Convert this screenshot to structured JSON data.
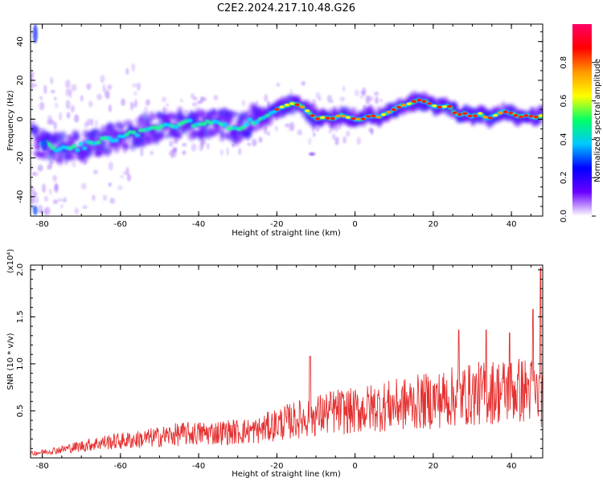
{
  "title": "C2E2.2024.217.10.48.G26",
  "colorbar": {
    "label": "Normalized spectral amplitude",
    "ticks": [
      "0.0",
      "0.2",
      "0.4",
      "0.6",
      "0.8"
    ],
    "tick_values": [
      0.0,
      0.2,
      0.4,
      0.6,
      0.8
    ],
    "range": [
      0,
      1
    ],
    "colors": [
      "#ffffff",
      "#6a00ff",
      "#0000ff",
      "#00c8ff",
      "#00ff66",
      "#ffff00",
      "#ff9900",
      "#ff0000",
      "#ff0066"
    ]
  },
  "chart_data": [
    {
      "type": "heatmap",
      "title": "C2E2.2024.217.10.48.G26",
      "xlabel": "Height of straight line (km)",
      "ylabel": "Frequency (Hz)",
      "xlim": [
        -83,
        48
      ],
      "ylim": [
        -50,
        49
      ],
      "xticks": [
        -80,
        -60,
        -40,
        -20,
        0,
        20,
        40
      ],
      "yticks": [
        -40,
        -20,
        0,
        20,
        40
      ],
      "ridge": {
        "x": [
          -82,
          -78,
          -74,
          -70,
          -66,
          -62,
          -58,
          -54,
          -50,
          -46,
          -42,
          -38,
          -34,
          -30,
          -26,
          -22,
          -20,
          -18,
          -16,
          -14,
          -12,
          -10,
          -8,
          -6,
          -4,
          -2,
          0,
          2,
          4,
          6,
          8,
          10,
          12,
          14,
          16,
          18,
          20,
          22,
          24,
          26,
          28,
          30,
          32,
          34,
          36,
          38,
          40,
          42,
          44,
          46,
          48
        ],
        "y": [
          -12,
          -14,
          -16,
          -14,
          -12,
          -10,
          -8,
          -6,
          -4,
          -3,
          -2,
          -2,
          -3,
          -4,
          -1,
          2,
          5,
          7,
          8,
          7,
          4,
          0,
          1,
          0,
          2,
          1,
          0,
          0,
          2,
          1,
          3,
          5,
          7,
          8,
          10,
          9,
          7,
          6,
          7,
          2,
          3,
          1,
          3,
          0,
          2,
          4,
          3,
          1,
          2,
          1,
          2
        ]
      }
    },
    {
      "type": "line",
      "xlabel": "Height of straight line (km)",
      "ylabel": "SNR (10 * v/v)",
      "y_multiplier": "(x10⁴)",
      "xlim": [
        -83,
        48
      ],
      "ylim": [
        0,
        2.05
      ],
      "xticks": [
        -80,
        -60,
        -40,
        -20,
        0,
        20,
        40
      ],
      "yticks": [
        0.5,
        1.0,
        1.5,
        2.0
      ],
      "ytick_labels": [
        "0.5",
        "1.0",
        "1.5",
        "2.0"
      ],
      "color": "#e53030",
      "envelope": {
        "x": [
          -83,
          -75,
          -65,
          -55,
          -45,
          -35,
          -25,
          -20,
          -15,
          -10,
          -5,
          0,
          5,
          10,
          15,
          20,
          25,
          30,
          35,
          40,
          45,
          48
        ],
        "y": [
          0.05,
          0.1,
          0.18,
          0.22,
          0.28,
          0.3,
          0.32,
          0.4,
          0.45,
          0.5,
          0.55,
          0.55,
          0.6,
          0.62,
          0.65,
          0.68,
          0.72,
          0.75,
          0.78,
          0.8,
          0.8,
          0.7
        ]
      },
      "peaks": [
        {
          "x": -11.5,
          "y": 1.08
        },
        {
          "x": 26.5,
          "y": 1.36
        },
        {
          "x": 33.5,
          "y": 1.36
        },
        {
          "x": 39.5,
          "y": 1.33
        },
        {
          "x": 45.5,
          "y": 1.58
        },
        {
          "x": 47.5,
          "y": 2.02
        }
      ]
    }
  ]
}
